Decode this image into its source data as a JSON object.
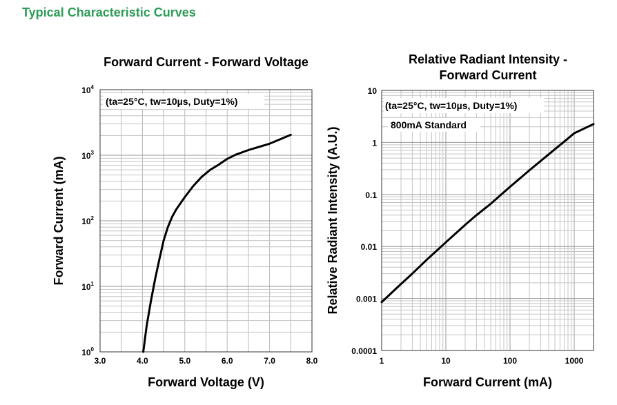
{
  "page": {
    "section_title": "Typical Characteristic Curves"
  },
  "chart_data": [
    {
      "type": "line",
      "title": "Forward Current - Forward Voltage",
      "xlabel": "Forward Voltage (V)",
      "ylabel": "Forward Current (mA)",
      "annotation": "(ta=25°C, tw=10µs, Duty=1%)",
      "x_scale": "linear",
      "y_scale": "log",
      "xlim": [
        3.0,
        8.0
      ],
      "ylim": [
        1,
        10000
      ],
      "grid": true,
      "x_ticks": [
        "3.0",
        "4.0",
        "5.0",
        "6.0",
        "7.0",
        "8.0"
      ],
      "y_ticks": [
        {
          "base": "10",
          "exp": "0"
        },
        {
          "base": "10",
          "exp": "1"
        },
        {
          "base": "10",
          "exp": "2"
        },
        {
          "base": "10",
          "exp": "3"
        },
        {
          "base": "10",
          "exp": "4"
        }
      ],
      "series": [
        {
          "x": [
            4.02,
            4.1,
            4.2,
            4.3,
            4.4,
            4.5,
            4.6,
            4.7,
            4.8,
            5.0,
            5.2,
            5.4,
            5.6,
            5.8,
            6.0,
            6.2,
            6.5,
            7.0,
            7.25,
            7.5
          ],
          "y": [
            1,
            2.5,
            6,
            13,
            26,
            50,
            80,
            115,
            150,
            230,
            340,
            470,
            600,
            720,
            880,
            1020,
            1200,
            1500,
            1750,
            2050
          ]
        }
      ]
    },
    {
      "type": "line",
      "title": "Relative Radiant Intensity - Forward Current",
      "title_lines": [
        "Relative Radiant Intensity -",
        "Forward Current"
      ],
      "xlabel": "Forward Current (mA)",
      "ylabel": "Relative Radiant Intensity (A.U.)",
      "annotations": [
        "(ta=25°C, tw=10µs, Duty=1%)",
        "800mA Standard"
      ],
      "x_scale": "log",
      "y_scale": "log",
      "xlim": [
        1,
        2000
      ],
      "ylim": [
        0.0001,
        10
      ],
      "grid": true,
      "x_ticks": [
        "1",
        "10",
        "100",
        "1000"
      ],
      "y_ticks": [
        "0.0001",
        "0.001",
        "0.01",
        "0.1",
        "1",
        "10"
      ],
      "series": [
        {
          "x": [
            1,
            2,
            3,
            5,
            10,
            20,
            30,
            50,
            100,
            200,
            500,
            800,
            1000,
            2000
          ],
          "y": [
            0.00085,
            0.0019,
            0.003,
            0.0055,
            0.012,
            0.026,
            0.04,
            0.066,
            0.14,
            0.29,
            0.74,
            1.19,
            1.5,
            2.25
          ]
        }
      ]
    }
  ]
}
